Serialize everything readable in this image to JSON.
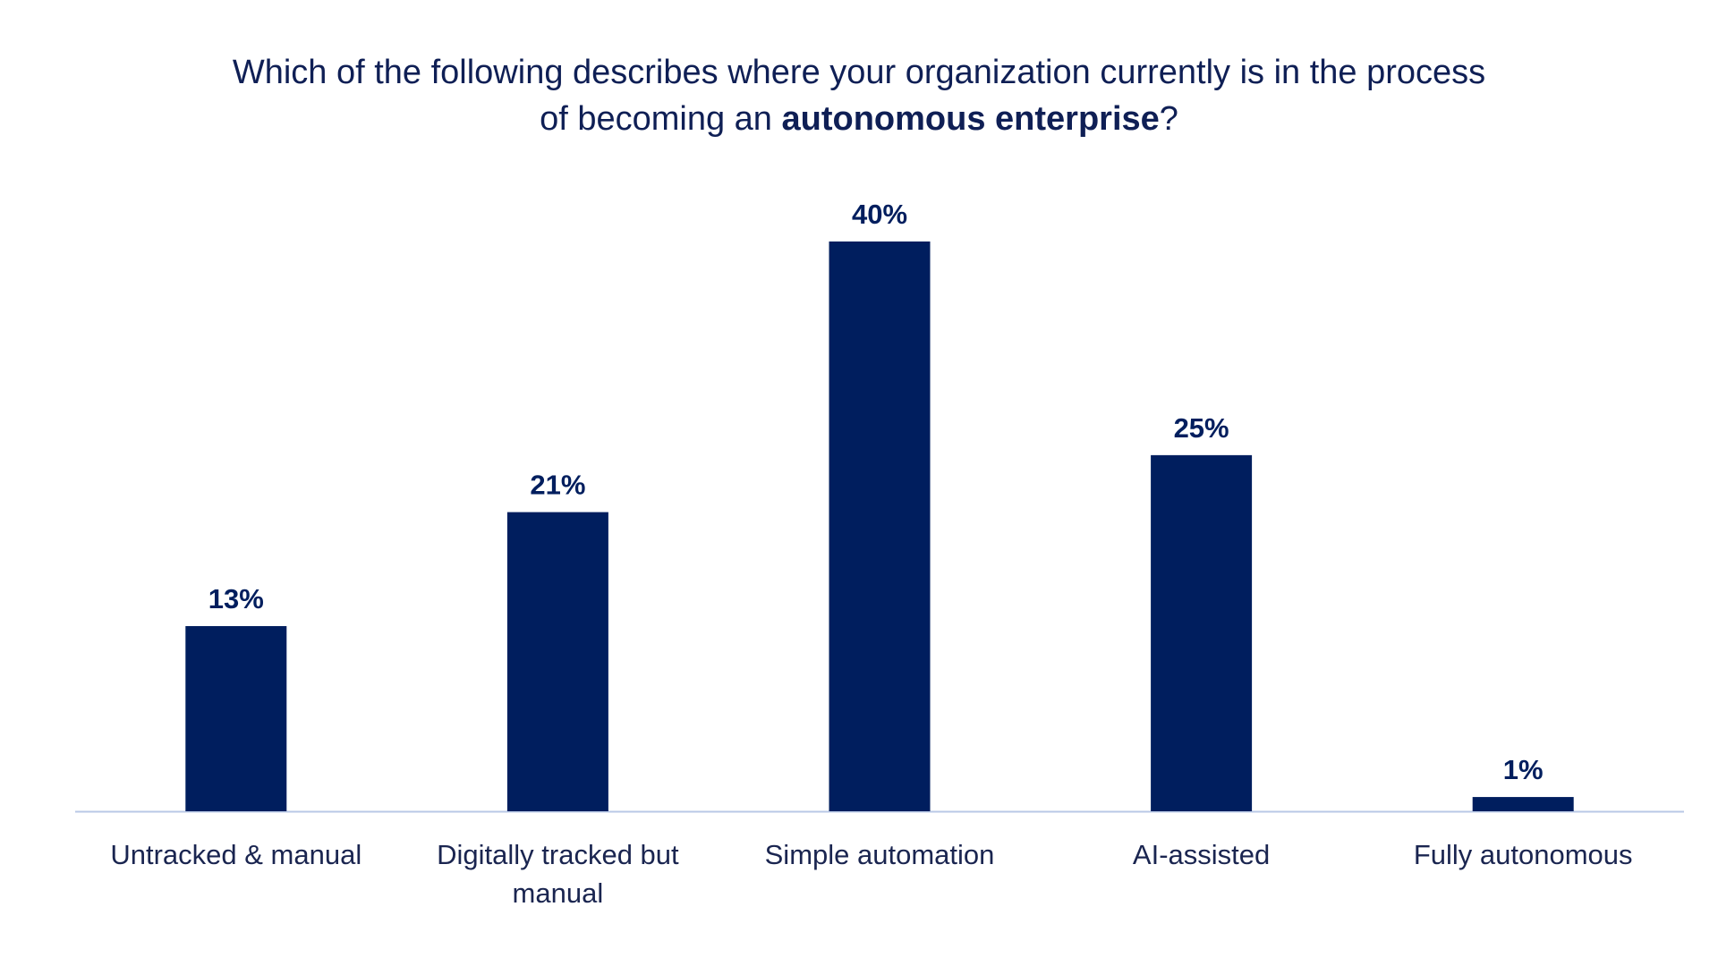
{
  "chart_data": {
    "type": "bar",
    "title": {
      "line1": "Which of the following describes where your organization currently is in the process",
      "line2_prefix": "of becoming an ",
      "line2_bold": "autonomous enterprise",
      "line2_suffix": "?"
    },
    "categories": [
      [
        "Untracked & manual"
      ],
      [
        "Digitally tracked but",
        "manual"
      ],
      [
        "Simple automation"
      ],
      [
        "AI-assisted"
      ],
      [
        "Fully autonomous"
      ]
    ],
    "values": [
      13,
      21,
      40,
      25,
      1
    ],
    "value_labels": [
      "13%",
      "21%",
      "40%",
      "25%",
      "1%"
    ],
    "unit": "%",
    "ylim": [
      0,
      40
    ],
    "grid": false,
    "legend": "none",
    "colors": {
      "bar": "#001e5e",
      "axis": "#b9c8e6",
      "title": "#0f1f55"
    }
  }
}
